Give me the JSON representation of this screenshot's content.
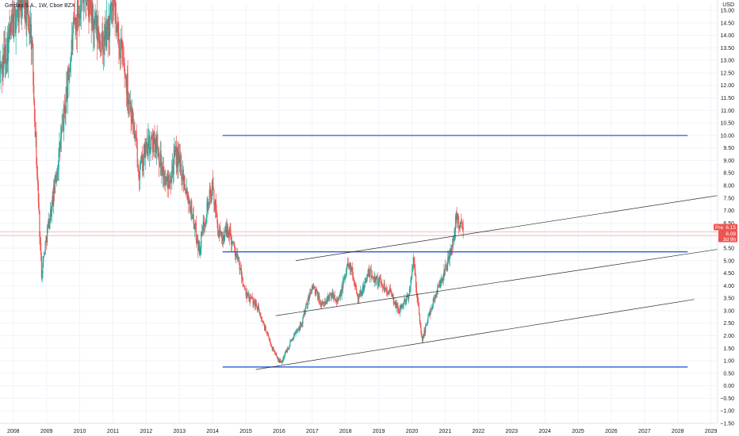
{
  "chart_data": {
    "type": "candlestick",
    "title": "Gerdau S.A., 1W, Cboe BZX",
    "currency": "USD",
    "ylim": [
      -1.5,
      15.0
    ],
    "y_ticks": [
      "15.00",
      "14.50",
      "14.00",
      "13.50",
      "13.00",
      "12.50",
      "12.00",
      "11.50",
      "11.00",
      "10.50",
      "10.00",
      "9.50",
      "9.00",
      "8.50",
      "8.00",
      "7.50",
      "7.00",
      "6.50",
      "6.00",
      "5.50",
      "5.00",
      "4.50",
      "4.00",
      "3.50",
      "3.00",
      "2.50",
      "2.00",
      "1.50",
      "1.00",
      "0.50",
      "0.00",
      "−0.50",
      "−1.00",
      "−1.50"
    ],
    "x_ticks": [
      "2008",
      "2009",
      "2010",
      "2011",
      "2012",
      "2013",
      "2014",
      "2015",
      "2016",
      "2017",
      "2018",
      "2019",
      "2020",
      "2021",
      "2022",
      "2023",
      "2024",
      "2025",
      "2026",
      "2027",
      "2028",
      "2029"
    ],
    "xlim": [
      2007.6,
      2029.2
    ],
    "grid": true,
    "up_color": "#26a69a",
    "down_color": "#ef5350",
    "price_path": [
      [
        2007.6,
        12.5
      ],
      [
        2008.0,
        14.5
      ],
      [
        2008.3,
        15.5
      ],
      [
        2008.55,
        14.0
      ],
      [
        2008.7,
        9.0
      ],
      [
        2008.85,
        4.5
      ],
      [
        2009.0,
        6.0
      ],
      [
        2009.2,
        7.5
      ],
      [
        2009.5,
        10.5
      ],
      [
        2009.8,
        14.0
      ],
      [
        2010.1,
        16.0
      ],
      [
        2010.4,
        14.5
      ],
      [
        2010.7,
        13.5
      ],
      [
        2011.0,
        15.0
      ],
      [
        2011.3,
        13.0
      ],
      [
        2011.55,
        11.0
      ],
      [
        2011.8,
        8.5
      ],
      [
        2012.0,
        9.5
      ],
      [
        2012.3,
        9.8
      ],
      [
        2012.6,
        8.0
      ],
      [
        2012.9,
        9.2
      ],
      [
        2013.1,
        8.5
      ],
      [
        2013.4,
        6.8
      ],
      [
        2013.6,
        5.4
      ],
      [
        2013.8,
        7.0
      ],
      [
        2014.0,
        7.9
      ],
      [
        2014.2,
        5.9
      ],
      [
        2014.5,
        6.2
      ],
      [
        2014.8,
        4.8
      ],
      [
        2015.0,
        3.6
      ],
      [
        2015.3,
        3.3
      ],
      [
        2015.6,
        2.2
      ],
      [
        2015.8,
        1.5
      ],
      [
        2016.05,
        0.9
      ],
      [
        2016.4,
        1.9
      ],
      [
        2016.7,
        2.6
      ],
      [
        2017.0,
        4.0
      ],
      [
        2017.3,
        3.2
      ],
      [
        2017.6,
        3.7
      ],
      [
        2017.8,
        3.4
      ],
      [
        2018.1,
        5.0
      ],
      [
        2018.4,
        3.5
      ],
      [
        2018.7,
        4.5
      ],
      [
        2019.0,
        4.2
      ],
      [
        2019.3,
        3.8
      ],
      [
        2019.6,
        3.0
      ],
      [
        2019.9,
        3.6
      ],
      [
        2020.05,
        5.0
      ],
      [
        2020.2,
        3.0
      ],
      [
        2020.3,
        1.8
      ],
      [
        2020.55,
        3.0
      ],
      [
        2020.8,
        4.0
      ],
      [
        2021.0,
        4.6
      ],
      [
        2021.2,
        5.5
      ],
      [
        2021.35,
        6.8
      ],
      [
        2021.45,
        6.4
      ],
      [
        2021.55,
        6.1
      ]
    ],
    "horizontal_lines": [
      {
        "y": 10.0,
        "x_start": 2014.3,
        "x_end": 2028.3,
        "color": "#2a5bd7"
      },
      {
        "y": 5.35,
        "x_start": 2014.3,
        "x_end": 2028.3,
        "color": "#2a5bd7"
      },
      {
        "y": 0.75,
        "x_start": 2014.3,
        "x_end": 2028.3,
        "color": "#2a5bd7"
      }
    ],
    "trend_lines": [
      {
        "x1": 2016.5,
        "y1": 5.0,
        "x2": 2029.2,
        "y2": 7.6
      },
      {
        "x1": 2015.9,
        "y1": 2.8,
        "x2": 2029.2,
        "y2": 5.45
      },
      {
        "x1": 2015.3,
        "y1": 0.65,
        "x2": 2028.5,
        "y2": 3.45
      }
    ],
    "current_price_band": [
      6.0,
      6.15
    ],
    "price_tags": [
      {
        "label": "Pre",
        "value": "6.15",
        "color": "#ef5350"
      },
      {
        "label": "",
        "value": "6.08",
        "color": "#ef5350"
      },
      {
        "label": "",
        "value": "3d 9h",
        "color": "#ef5350"
      }
    ]
  }
}
